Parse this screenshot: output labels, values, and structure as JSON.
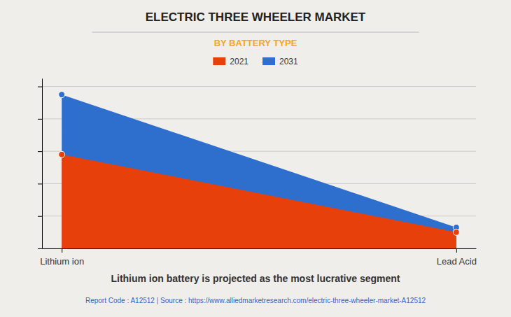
{
  "chart_data": {
    "type": "area",
    "title": "ELECTRIC THREE WHEELER MARKET",
    "subtitle": "BY BATTERY TYPE",
    "categories": [
      "Lithium ion",
      "Lead Acid"
    ],
    "series": [
      {
        "name": "2021",
        "color": "#e8400a",
        "values": [
          0.58,
          0.1
        ]
      },
      {
        "name": "2031",
        "color": "#2e6fce",
        "values": [
          0.95,
          0.13
        ]
      }
    ],
    "ylim": [
      0,
      1.05
    ],
    "yticks": [
      0,
      0.2,
      0.4,
      0.6,
      0.8,
      1.0
    ],
    "grid": true,
    "legend": "top",
    "tick_labels": "x",
    "marker": "circle",
    "annotations": [
      "Lithium ion battery is projected as the most lucrative segment",
      "Report Code : A12512  |  Source : https://www.alliedmarketresearch.com/electric-three-wheeler-market-A12512"
    ]
  }
}
